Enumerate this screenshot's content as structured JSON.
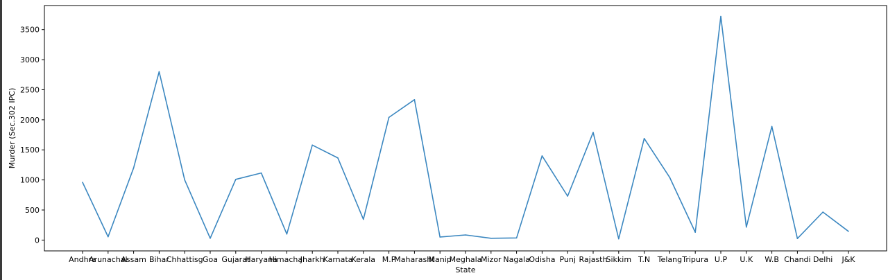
{
  "chart_data": {
    "type": "line",
    "title": "",
    "xlabel": "State",
    "ylabel": "Murder (Sec.302 IPC)",
    "categories": [
      "Andhra",
      "Arunachal",
      "Assam",
      "Bihar",
      "Chhattisg",
      "Goa",
      "Gujarat",
      "Haryana",
      "Himachal",
      "Jharkh",
      "Karnata",
      "Kerala",
      "M.P",
      "Maharasht",
      "Manip",
      "Meghala",
      "Mizor",
      "Nagala",
      "Odisha",
      "Punj",
      "Rajasth",
      "Sikkim",
      "T.N",
      "Telang",
      "Tripura",
      "U.P",
      "U.K",
      "W.B",
      "Chandi",
      "Delhi",
      "J&K"
    ],
    "values": [
      960,
      55,
      1200,
      2800,
      1000,
      30,
      1010,
      1115,
      100,
      1580,
      1365,
      345,
      2040,
      2335,
      50,
      85,
      30,
      35,
      1400,
      730,
      1790,
      20,
      1690,
      1040,
      130,
      3720,
      215,
      1890,
      25,
      465,
      145
    ],
    "yticks": [
      0,
      500,
      1000,
      1500,
      2000,
      2500,
      3000,
      3500
    ],
    "ylim": [
      -180,
      3900
    ],
    "series_color": "#3b87c0",
    "grid": false,
    "legend": "none"
  }
}
